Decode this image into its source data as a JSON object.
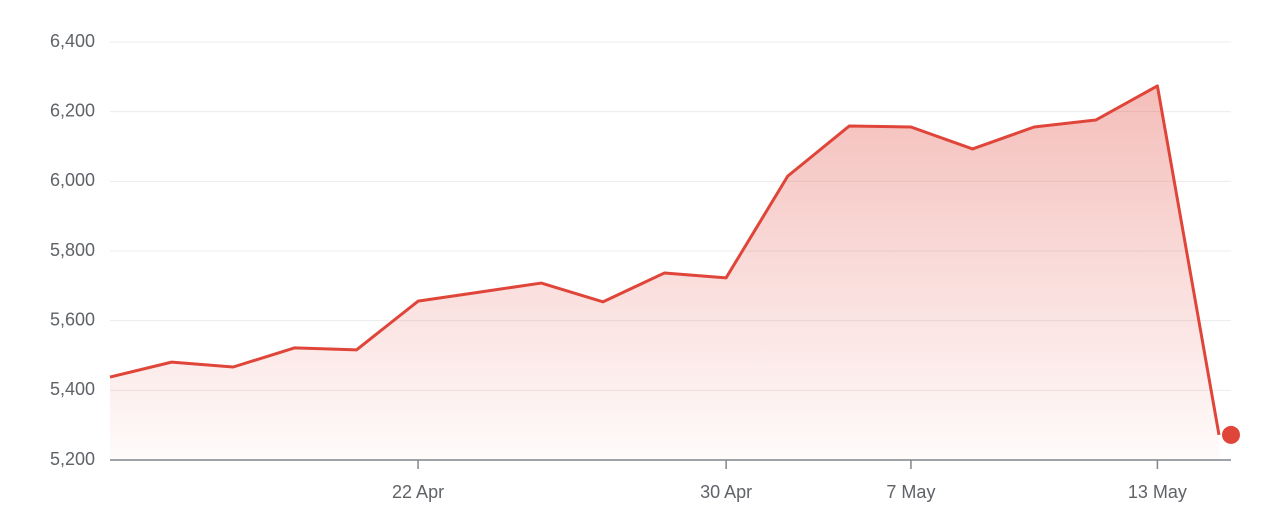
{
  "chart_data": {
    "type": "line",
    "categories": [
      null,
      null,
      null,
      null,
      null,
      "22 Apr",
      null,
      null,
      null,
      null,
      "30 Apr",
      null,
      null,
      "7 May",
      null,
      null,
      null,
      "13 May",
      null
    ],
    "values": [
      5438,
      5481,
      5467,
      5522,
      5516,
      5656,
      5682,
      5708,
      5654,
      5737,
      5723,
      6015,
      6159,
      6156,
      6093,
      6156,
      6176,
      6274,
      5272
    ],
    "color": "#e0453a",
    "ylim": [
      5200,
      6400
    ],
    "yticks": [
      {
        "value": 5200,
        "label": "5,200"
      },
      {
        "value": 5400,
        "label": "5,400"
      },
      {
        "value": 5600,
        "label": "5,600"
      },
      {
        "value": 5800,
        "label": "5,800"
      },
      {
        "value": 6000,
        "label": "6,000"
      },
      {
        "value": 6200,
        "label": "6,200"
      },
      {
        "value": 6400,
        "label": "6,400"
      }
    ],
    "grid": true
  }
}
